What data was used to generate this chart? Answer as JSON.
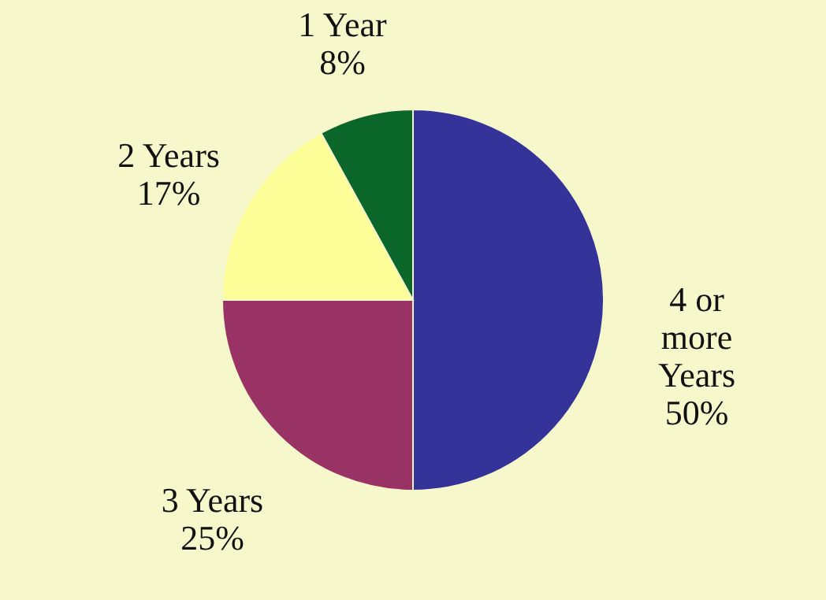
{
  "chart_data": {
    "type": "pie",
    "categories": [
      "4 or more Years",
      "3 Years",
      "2 Years",
      "1 Year"
    ],
    "values": [
      50,
      25,
      17,
      8
    ],
    "value_labels": [
      "50%",
      "25%",
      "17%",
      "8%"
    ],
    "colors": [
      "#333399",
      "#993366",
      "#ffff99",
      "#0b6629"
    ]
  }
}
